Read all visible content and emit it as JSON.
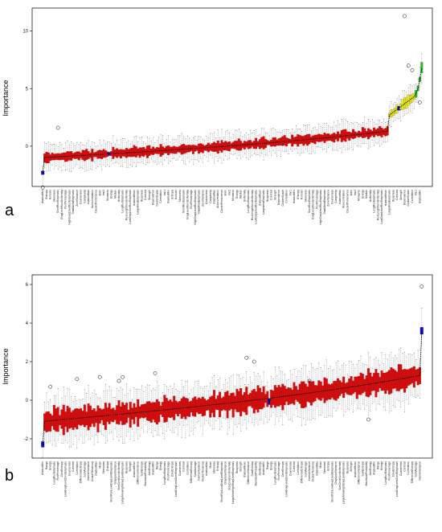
{
  "colors": {
    "rejected": "#d01010",
    "tentative": "#e8e81a",
    "confirmed": "#22c522",
    "shadow": "#1010c8",
    "median_line": "#000000"
  },
  "chart_data": [
    {
      "type": "box",
      "panel": "a",
      "title": "",
      "xlabel": "",
      "ylabel": "Importance",
      "ylim": [
        -3.5,
        12
      ],
      "yticks": [
        0,
        5,
        10
      ],
      "grid": false,
      "n_features": 200,
      "medians_start": -1.0,
      "medians_pre_tail_end": 1.3,
      "shadow_feature_index": [
        0,
        35,
        187
      ],
      "tail": {
        "tentative_count": 14,
        "tentative_range": [
          2.7,
          4.3
        ],
        "confirmed_count": 4,
        "confirmed_values": [
          4.6,
          5.0,
          5.8,
          6.8
        ]
      },
      "outliers": [
        {
          "feature_index": 0,
          "value": -3.6
        },
        {
          "feature_index": 8,
          "value": 1.6
        },
        {
          "feature_index": 190,
          "value": 11.3
        },
        {
          "feature_index": 192,
          "value": 7.0
        },
        {
          "feature_index": 194,
          "value": 6.6
        },
        {
          "feature_index": 198,
          "value": 3.8
        }
      ],
      "categories_sample": [
        "shadowMin",
        "Moments",
        "Entropy",
        "Energy",
        "Kurtosis",
        "Median",
        "Skewness",
        "Uniformity",
        "ShortRunEmphasis",
        "LongRunEmphasis",
        "GrayLevelNonUniformity",
        "RunLengthNonUniformity",
        "RunPercentage",
        "LowGrayLevelRunEmphasis",
        "HighGrayLevelRunEmphasis",
        "shadowMean",
        "SmallAreaEmphasis",
        "LargeAreaEmphasis",
        "ZoneVariance",
        "Busyness",
        "Coarseness",
        "Contrast",
        "Complexity",
        "Strength",
        "shadowMax",
        "Dependence",
        "Autocorrelation",
        "ClusterShade",
        "ClusterProminence",
        "Correlation",
        "Idmn",
        "Imc1",
        "Imc2"
      ]
    },
    {
      "type": "box",
      "panel": "b",
      "title": "",
      "xlabel": "",
      "ylabel": "Importance",
      "ylim": [
        -3,
        6.5
      ],
      "yticks": [
        -2,
        0,
        2,
        4,
        6
      ],
      "grid": false,
      "n_features": 200,
      "medians_start": -1.1,
      "medians_end": 1.3,
      "shadow_feature_index": [
        0,
        119,
        199
      ],
      "shadow_values": [
        -2.3,
        -0.1,
        3.6
      ],
      "outliers": [
        {
          "feature_index": 4,
          "value": 0.7
        },
        {
          "feature_index": 18,
          "value": 1.1
        },
        {
          "feature_index": 30,
          "value": 1.2
        },
        {
          "feature_index": 40,
          "value": 1.0
        },
        {
          "feature_index": 42,
          "value": 1.2
        },
        {
          "feature_index": 59,
          "value": 1.4
        },
        {
          "feature_index": 107,
          "value": 2.2
        },
        {
          "feature_index": 111,
          "value": 2.0
        },
        {
          "feature_index": 140,
          "value": 1.0
        },
        {
          "feature_index": 171,
          "value": -1.0
        },
        {
          "feature_index": 199,
          "value": 5.9
        }
      ],
      "categories_sample": [
        "shadowMin",
        "Mean",
        "Range",
        "Skewness",
        "Energy",
        "Entropy",
        "LongRunEmphasis",
        "ShortRunLowGrayLevelEmphasis",
        "RunPercentage",
        "GrayLevelVariance",
        "ZoneEntropy",
        "SizeZoneNonUniformity",
        "LowGrayLevelZoneEmphasis",
        "LargeAreaHighGrayLevelEmphasis",
        "Coarseness",
        "Busyness",
        "Contrast",
        "Strength",
        "Correlation",
        "shadowMean",
        "DifferenceEntropy",
        "DifferenceVariance",
        "SumAverage",
        "SumEntropy",
        "InverseVariance",
        "MaximumProbability",
        "ClusterTendency",
        "JointEnergy",
        "shadowMax"
      ]
    }
  ],
  "panels": [
    {
      "letter": "a",
      "ylabel": "Importance",
      "ticks": [
        "10",
        "5",
        "0"
      ]
    },
    {
      "letter": "b",
      "ylabel": "Importance",
      "ticks": [
        "6",
        "4",
        "2",
        "0",
        "-2"
      ]
    }
  ]
}
